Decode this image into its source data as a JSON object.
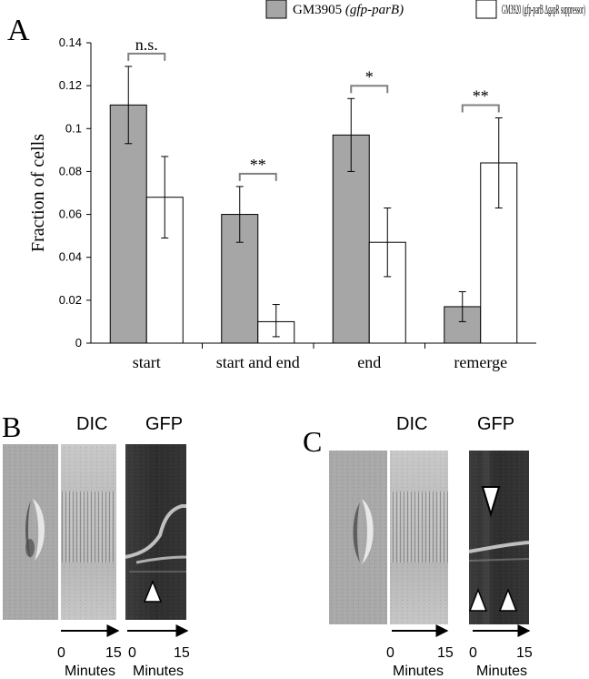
{
  "panel_labels": {
    "a": "A",
    "b": "B",
    "c": "C"
  },
  "legend": [
    {
      "strain": "GM3905",
      "genotype": "(gfp-parB)",
      "color": "#a6a6a6"
    },
    {
      "strain": "GM3920",
      "genotype": "(gfp-parB ΔgapR suppressor)",
      "color": "#ffffff"
    }
  ],
  "chart_data": {
    "type": "bar",
    "title": "",
    "xlabel": "",
    "ylabel": "Fraction of cells",
    "ylim": [
      0,
      0.14
    ],
    "yticks": [
      "0",
      "0.02",
      "0.04",
      "0.06",
      "0.08",
      "0.1",
      "0.12",
      "0.14"
    ],
    "categories": [
      "start",
      "start and end",
      "end",
      "remerge"
    ],
    "series": [
      {
        "name": "GM3905 (gfp-parB)",
        "color": "#a6a6a6",
        "values": [
          0.111,
          0.06,
          0.097,
          0.017
        ],
        "error_low": [
          0.093,
          0.047,
          0.08,
          0.01
        ],
        "error_high": [
          0.129,
          0.073,
          0.114,
          0.024
        ]
      },
      {
        "name": "GM3920 (gfp-parB ΔgapR suppressor)",
        "color": "#ffffff",
        "values": [
          0.068,
          0.01,
          0.047,
          0.084
        ],
        "error_low": [
          0.049,
          0.003,
          0.031,
          0.063
        ],
        "error_high": [
          0.087,
          0.018,
          0.063,
          0.105
        ]
      }
    ],
    "significance": [
      "n.s.",
      "**",
      "*",
      "**"
    ],
    "grid": false,
    "legend_position": "top"
  },
  "micrographs": {
    "dic_label": "DIC",
    "gfp_label": "GFP",
    "axis_start": "0",
    "axis_end": "15",
    "axis_unit": "Minutes",
    "panel_b": {
      "arrowheads": [
        {
          "direction": "up",
          "style": "white"
        }
      ]
    },
    "panel_c": {
      "arrowheads": [
        {
          "direction": "down",
          "style": "white-outlined"
        },
        {
          "direction": "up",
          "style": "white"
        },
        {
          "direction": "up",
          "style": "white"
        }
      ]
    }
  }
}
